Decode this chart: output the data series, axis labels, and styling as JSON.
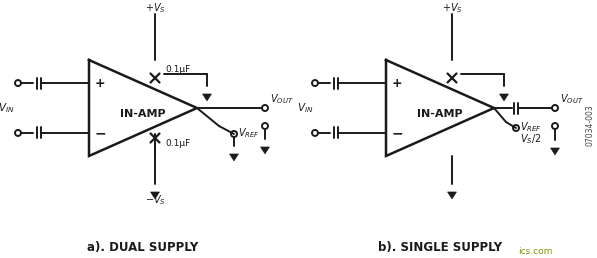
{
  "bg_color": "#ffffff",
  "line_color": "#1a1a1a",
  "label_a": "a). DUAL SUPPLY",
  "label_b": "b). SINGLE SUPPLY",
  "text_inamp": "IN-AMP",
  "text_cap": "0.1μF",
  "watermark": "07034-003",
  "watermark2": "ics.com",
  "fig_width": 5.97,
  "fig_height": 2.58,
  "dpi": 100
}
